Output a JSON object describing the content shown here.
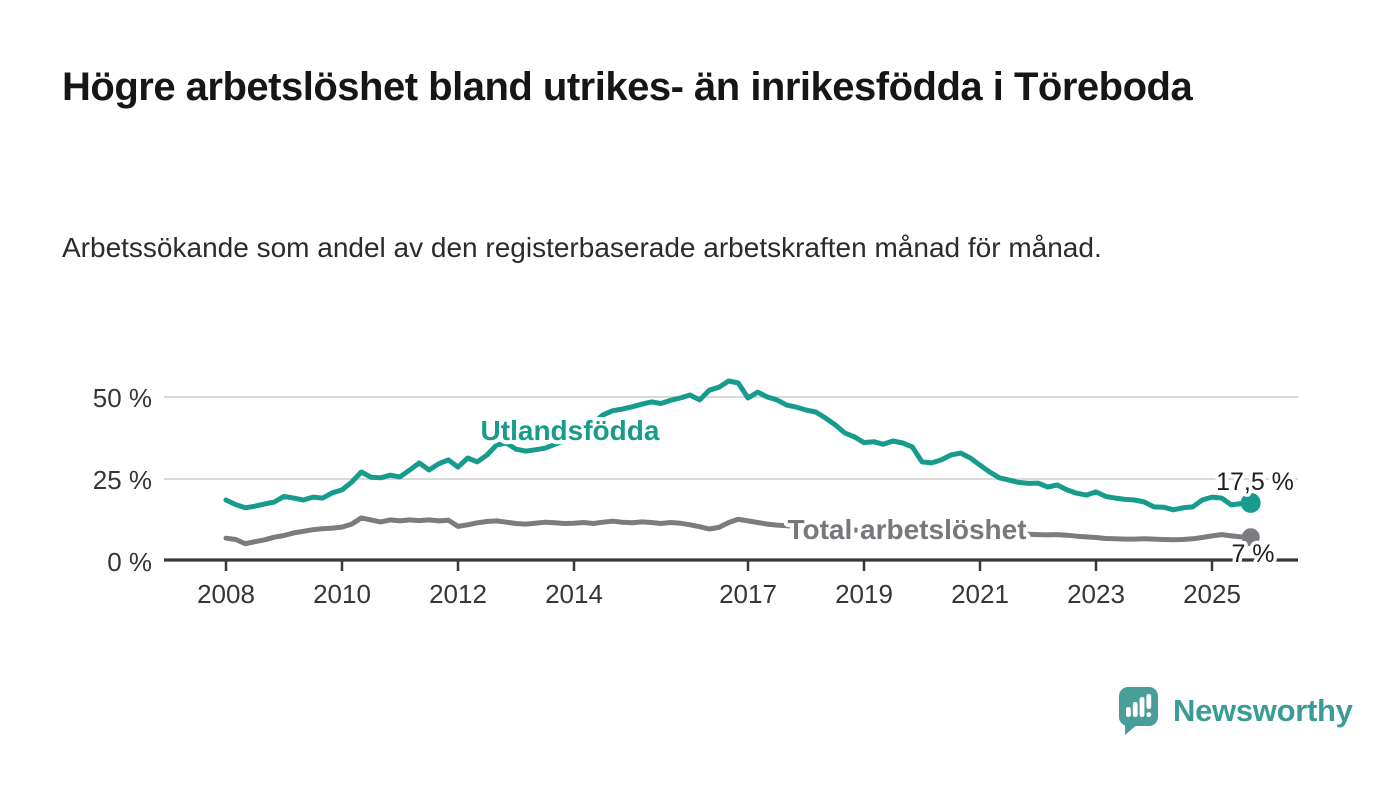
{
  "title": "Högre arbetslöshet bland utrikes- än inrikesfödda i Töreboda",
  "subtitle": "Arbetssökande som andel av den registerbaserade arbetskraften månad för månad.",
  "branding": {
    "name": "Newsworthy",
    "logo_icon": "speech-bubble-bar-chart-icon",
    "brand_color": "#3b9c97",
    "icon_color": "#4a9e9a"
  },
  "chart_data": {
    "type": "line",
    "title": "Högre arbetslöshet bland utrikes- än inrikesfödda i Töreboda",
    "subtitle": "Arbetssökande som andel av den registerbaserade arbetskraften månad för månad.",
    "x_axis": {
      "tick_labels": [
        "2008",
        "2010",
        "2012",
        "2014",
        "2017",
        "2019",
        "2021",
        "2023",
        "2025"
      ],
      "tick_years": [
        2008,
        2010,
        2012,
        2014,
        2017,
        2019,
        2021,
        2023,
        2025
      ],
      "range_years": [
        2008,
        2025.67
      ]
    },
    "y_axis": {
      "tick_labels": [
        "0 %",
        "25 %",
        "50 %"
      ],
      "tick_values": [
        0,
        25,
        50
      ],
      "gridline_values": [
        25,
        50
      ],
      "range": [
        0,
        57
      ],
      "unit": "%"
    },
    "grid_color": "#d9d9d9",
    "axis_color": "#38383c",
    "series": [
      {
        "name": "Utlandsfödda",
        "color": "#169b8c",
        "end_label": "17,5 %",
        "end_value": 17.5,
        "x_start": 2008,
        "x_step_months": 2,
        "values": [
          18.4,
          17.0,
          16.0,
          16.5,
          17.2,
          17.8,
          19.5,
          19.0,
          18.4,
          19.3,
          19.0,
          20.6,
          21.5,
          23.9,
          27.0,
          25.4,
          25.2,
          26.0,
          25.5,
          27.6,
          29.8,
          27.6,
          29.5,
          30.7,
          28.5,
          31.3,
          30.1,
          32.2,
          35.3,
          35.9,
          34.0,
          33.4,
          33.8,
          34.3,
          35.5,
          36.7,
          37.3,
          39.5,
          42.0,
          44.5,
          45.8,
          46.3,
          47.0,
          47.8,
          48.5,
          48.0,
          49.0,
          49.7,
          50.6,
          49.1,
          52.1,
          53.0,
          54.9,
          54.3,
          49.7,
          51.5,
          50.0,
          49.1,
          47.5,
          46.9,
          46.0,
          45.4,
          43.6,
          41.5,
          39.0,
          37.8,
          36.0,
          36.3,
          35.5,
          36.5,
          35.9,
          34.7,
          30.1,
          29.8,
          30.7,
          32.2,
          32.8,
          31.3,
          29.1,
          27.0,
          25.2,
          24.5,
          23.8,
          23.5,
          23.6,
          22.4,
          23.0,
          21.5,
          20.5,
          19.9,
          20.9,
          19.5,
          19.0,
          18.6,
          18.4,
          17.8,
          16.3,
          16.2,
          15.4,
          16.0,
          16.3,
          18.4,
          19.3,
          19.0,
          16.9,
          17.3,
          17.5
        ]
      },
      {
        "name": "Total arbetslöshet",
        "color": "#7b7b80",
        "end_label": "7 %",
        "end_value": 7.0,
        "x_start": 2008,
        "x_step_months": 2,
        "values": [
          6.7,
          6.3,
          5.0,
          5.6,
          6.2,
          7.0,
          7.5,
          8.3,
          8.8,
          9.3,
          9.6,
          9.8,
          10.1,
          11.0,
          12.9,
          12.3,
          11.7,
          12.3,
          12.0,
          12.3,
          12.1,
          12.3,
          12.0,
          12.2,
          10.3,
          10.8,
          11.4,
          11.8,
          12.0,
          11.6,
          11.2,
          11.0,
          11.3,
          11.6,
          11.4,
          11.2,
          11.3,
          11.5,
          11.2,
          11.6,
          11.9,
          11.6,
          11.4,
          11.7,
          11.5,
          11.2,
          11.5,
          11.3,
          10.8,
          10.2,
          9.5,
          10.0,
          11.5,
          12.5,
          12.0,
          11.5,
          11.0,
          10.7,
          10.5,
          10.3,
          10.0,
          9.8,
          9.6,
          9.4,
          9.3,
          9.2,
          9.0,
          8.9,
          8.8,
          8.7,
          8.6,
          8.5,
          8.6,
          8.8,
          9.2,
          9.4,
          9.2,
          9.0,
          8.8,
          8.6,
          8.4,
          8.2,
          8.0,
          7.9,
          7.8,
          7.7,
          7.8,
          7.6,
          7.3,
          7.1,
          6.9,
          6.6,
          6.5,
          6.4,
          6.4,
          6.5,
          6.4,
          6.3,
          6.2,
          6.3,
          6.5,
          6.9,
          7.4,
          7.8,
          7.4,
          7.1,
          7.0
        ]
      }
    ],
    "legend_position": "inline-labels-on-lines"
  }
}
